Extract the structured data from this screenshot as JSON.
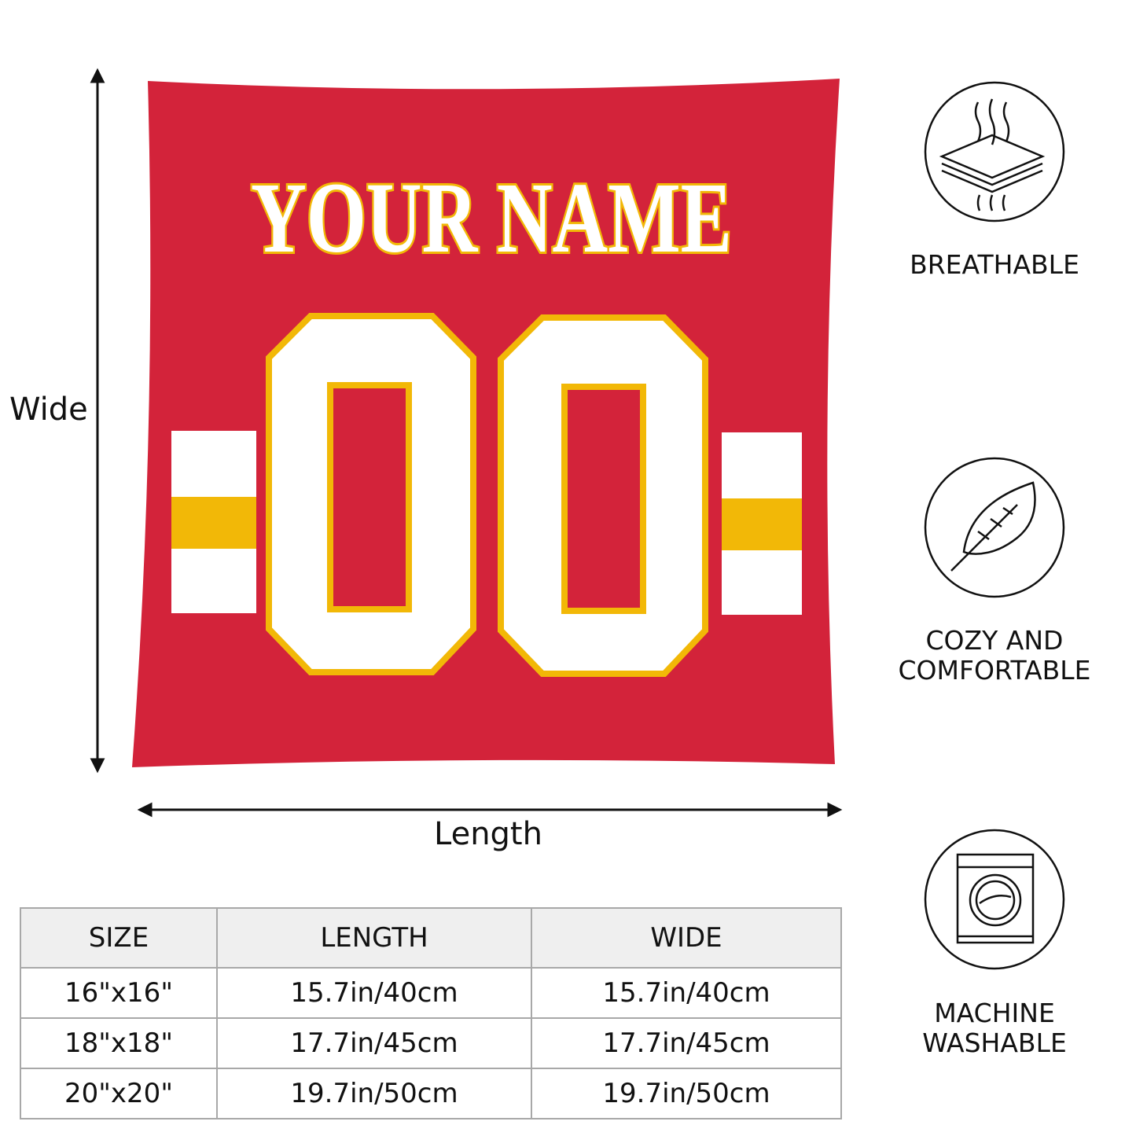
{
  "pillow": {
    "name_text": "YOUR NAME",
    "number_text": "00",
    "colors": {
      "base": "#d3233a",
      "trim": "#f2b807",
      "text": "#ffffff"
    }
  },
  "dimensions": {
    "height_label": "Wide",
    "width_label": "Length"
  },
  "size_table": {
    "headers": [
      "SIZE",
      "LENGTH",
      "WIDE"
    ],
    "rows": [
      [
        "16\"x16\"",
        "15.7in/40cm",
        "15.7in/40cm"
      ],
      [
        "18\"x18\"",
        "17.7in/45cm",
        "17.7in/45cm"
      ],
      [
        "20\"x20\"",
        "19.7in/50cm",
        "19.7in/50cm"
      ]
    ]
  },
  "features": [
    {
      "icon": "breathable-layers-icon",
      "line1": "BREATHABLE",
      "line2": ""
    },
    {
      "icon": "feather-icon",
      "line1": "COZY AND",
      "line2": "COMFORTABLE"
    },
    {
      "icon": "washing-machine-icon",
      "line1": "MACHINE",
      "line2": "WASHABLE"
    }
  ]
}
